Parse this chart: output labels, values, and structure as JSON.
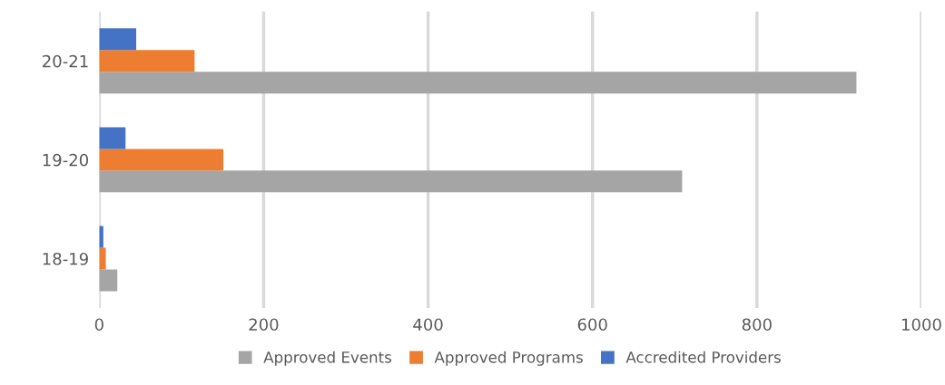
{
  "chart_data": {
    "type": "bar",
    "orientation": "horizontal",
    "categories": [
      "20-21",
      "19-20",
      "18-19"
    ],
    "series": [
      {
        "name": "Approved Events",
        "color": "#a5a5a5",
        "values": [
          921,
          709,
          22
        ]
      },
      {
        "name": "Approved Programs",
        "color": "#ed7d31",
        "values": [
          116,
          151,
          8
        ]
      },
      {
        "name": "Accredited Providers",
        "color": "#4472c4",
        "values": [
          45,
          32,
          5
        ]
      }
    ],
    "xlim": [
      0,
      1000
    ],
    "xticks": [
      0,
      200,
      400,
      600,
      800,
      1000
    ],
    "grid": "x",
    "legend": "bottom"
  }
}
